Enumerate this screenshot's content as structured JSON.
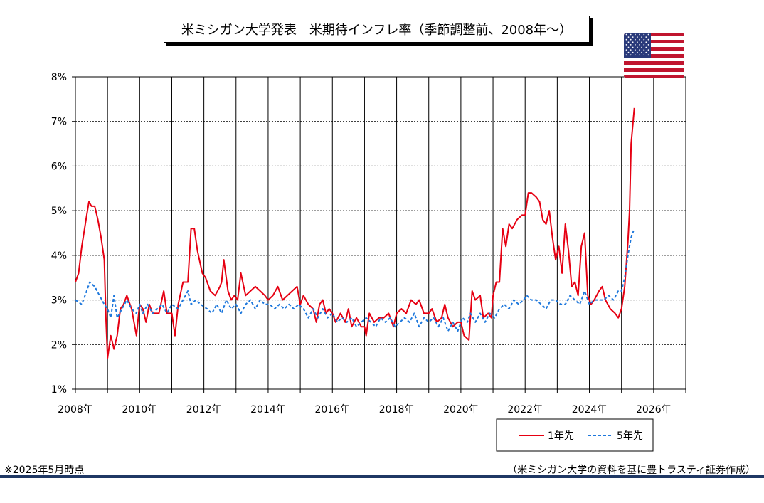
{
  "title": "米ミシガン大学発表　米期待インフレ率（季節調整前、2008年～）",
  "footnote": "※2025年5月時点",
  "source": "（米ミシガン大学の資料を基に豊トラスティ証券作成）",
  "flag_icon": "us-flag-icon",
  "chart_data": {
    "type": "line",
    "title": "米ミシガン大学発表　米期待インフレ率（季節調整前、2008年～）",
    "xlabel": "",
    "ylabel": "",
    "xlim": [
      2008,
      2027
    ],
    "ylim": [
      1,
      8
    ],
    "y_ticks": [
      "1%",
      "2%",
      "3%",
      "4%",
      "5%",
      "6%",
      "7%",
      "8%"
    ],
    "x_ticks": [
      "2008年",
      "2010年",
      "2012年",
      "2014年",
      "2016年",
      "2018年",
      "2020年",
      "2022年",
      "2024年",
      "2026年"
    ],
    "grid": true,
    "legend_position": "bottom-right",
    "series": [
      {
        "name": "1年先",
        "color": "#e60012",
        "style": "solid",
        "points": [
          [
            2008.0,
            3.4
          ],
          [
            2008.1,
            3.6
          ],
          [
            2008.2,
            4.2
          ],
          [
            2008.33,
            4.8
          ],
          [
            2008.42,
            5.2
          ],
          [
            2008.5,
            5.1
          ],
          [
            2008.6,
            5.1
          ],
          [
            2008.7,
            4.8
          ],
          [
            2008.8,
            4.4
          ],
          [
            2008.9,
            3.9
          ],
          [
            2008.95,
            2.6
          ],
          [
            2009.0,
            1.7
          ],
          [
            2009.1,
            2.2
          ],
          [
            2009.2,
            1.9
          ],
          [
            2009.3,
            2.2
          ],
          [
            2009.4,
            2.8
          ],
          [
            2009.5,
            2.9
          ],
          [
            2009.6,
            3.1
          ],
          [
            2009.75,
            2.8
          ],
          [
            2009.9,
            2.2
          ],
          [
            2010.0,
            2.9
          ],
          [
            2010.1,
            2.8
          ],
          [
            2010.2,
            2.5
          ],
          [
            2010.3,
            2.9
          ],
          [
            2010.4,
            2.7
          ],
          [
            2010.6,
            2.7
          ],
          [
            2010.75,
            3.2
          ],
          [
            2010.85,
            2.7
          ],
          [
            2011.0,
            2.7
          ],
          [
            2011.1,
            2.2
          ],
          [
            2011.2,
            2.9
          ],
          [
            2011.35,
            3.4
          ],
          [
            2011.5,
            3.4
          ],
          [
            2011.6,
            4.6
          ],
          [
            2011.7,
            4.6
          ],
          [
            2011.8,
            4.1
          ],
          [
            2011.95,
            3.6
          ],
          [
            2012.05,
            3.5
          ],
          [
            2012.2,
            3.2
          ],
          [
            2012.35,
            3.1
          ],
          [
            2012.5,
            3.3
          ],
          [
            2012.55,
            3.4
          ],
          [
            2012.62,
            3.9
          ],
          [
            2012.75,
            3.2
          ],
          [
            2012.85,
            3.0
          ],
          [
            2012.95,
            3.1
          ],
          [
            2013.05,
            3.0
          ],
          [
            2013.15,
            3.6
          ],
          [
            2013.3,
            3.1
          ],
          [
            2013.45,
            3.2
          ],
          [
            2013.6,
            3.3
          ],
          [
            2013.75,
            3.2
          ],
          [
            2013.9,
            3.1
          ],
          [
            2014.0,
            3.0
          ],
          [
            2014.15,
            3.1
          ],
          [
            2014.3,
            3.3
          ],
          [
            2014.45,
            3.0
          ],
          [
            2014.6,
            3.1
          ],
          [
            2014.75,
            3.2
          ],
          [
            2014.9,
            3.3
          ],
          [
            2015.0,
            2.9
          ],
          [
            2015.1,
            3.1
          ],
          [
            2015.25,
            2.9
          ],
          [
            2015.4,
            2.8
          ],
          [
            2015.5,
            2.5
          ],
          [
            2015.6,
            2.9
          ],
          [
            2015.7,
            3.0
          ],
          [
            2015.8,
            2.7
          ],
          [
            2015.9,
            2.8
          ],
          [
            2016.0,
            2.7
          ],
          [
            2016.1,
            2.5
          ],
          [
            2016.25,
            2.7
          ],
          [
            2016.4,
            2.5
          ],
          [
            2016.5,
            2.8
          ],
          [
            2016.6,
            2.4
          ],
          [
            2016.75,
            2.6
          ],
          [
            2016.9,
            2.4
          ],
          [
            2017.0,
            2.4
          ],
          [
            2017.05,
            2.2
          ],
          [
            2017.15,
            2.7
          ],
          [
            2017.3,
            2.5
          ],
          [
            2017.45,
            2.6
          ],
          [
            2017.6,
            2.6
          ],
          [
            2017.75,
            2.7
          ],
          [
            2017.9,
            2.4
          ],
          [
            2018.0,
            2.7
          ],
          [
            2018.15,
            2.8
          ],
          [
            2018.3,
            2.7
          ],
          [
            2018.45,
            3.0
          ],
          [
            2018.6,
            2.9
          ],
          [
            2018.7,
            3.0
          ],
          [
            2018.85,
            2.7
          ],
          [
            2019.0,
            2.7
          ],
          [
            2019.1,
            2.8
          ],
          [
            2019.25,
            2.5
          ],
          [
            2019.4,
            2.6
          ],
          [
            2019.5,
            2.9
          ],
          [
            2019.6,
            2.6
          ],
          [
            2019.75,
            2.4
          ],
          [
            2019.9,
            2.5
          ],
          [
            2020.0,
            2.5
          ],
          [
            2020.1,
            2.2
          ],
          [
            2020.25,
            2.1
          ],
          [
            2020.35,
            3.2
          ],
          [
            2020.45,
            3.0
          ],
          [
            2020.6,
            3.1
          ],
          [
            2020.7,
            2.6
          ],
          [
            2020.85,
            2.7
          ],
          [
            2020.95,
            2.6
          ],
          [
            2021.0,
            3.1
          ],
          [
            2021.1,
            3.4
          ],
          [
            2021.2,
            3.4
          ],
          [
            2021.3,
            4.6
          ],
          [
            2021.4,
            4.2
          ],
          [
            2021.5,
            4.7
          ],
          [
            2021.6,
            4.6
          ],
          [
            2021.75,
            4.8
          ],
          [
            2021.9,
            4.9
          ],
          [
            2022.0,
            4.9
          ],
          [
            2022.1,
            5.4
          ],
          [
            2022.2,
            5.4
          ],
          [
            2022.35,
            5.3
          ],
          [
            2022.45,
            5.2
          ],
          [
            2022.55,
            4.8
          ],
          [
            2022.65,
            4.7
          ],
          [
            2022.75,
            5.0
          ],
          [
            2022.85,
            4.4
          ],
          [
            2022.95,
            3.9
          ],
          [
            2023.05,
            4.2
          ],
          [
            2023.15,
            3.6
          ],
          [
            2023.25,
            4.7
          ],
          [
            2023.35,
            4.1
          ],
          [
            2023.45,
            3.3
          ],
          [
            2023.55,
            3.4
          ],
          [
            2023.65,
            3.1
          ],
          [
            2023.75,
            4.2
          ],
          [
            2023.85,
            4.5
          ],
          [
            2023.95,
            3.1
          ],
          [
            2024.05,
            2.9
          ],
          [
            2024.15,
            3.0
          ],
          [
            2024.3,
            3.2
          ],
          [
            2024.4,
            3.3
          ],
          [
            2024.5,
            3.0
          ],
          [
            2024.65,
            2.8
          ],
          [
            2024.8,
            2.7
          ],
          [
            2024.9,
            2.6
          ],
          [
            2025.0,
            2.8
          ],
          [
            2025.1,
            3.3
          ],
          [
            2025.2,
            4.3
          ],
          [
            2025.25,
            5.0
          ],
          [
            2025.3,
            6.5
          ],
          [
            2025.4,
            7.3
          ]
        ]
      },
      {
        "name": "5年先",
        "color": "#1e78dc",
        "style": "dashed",
        "points": [
          [
            2008.0,
            3.0
          ],
          [
            2008.2,
            2.9
          ],
          [
            2008.35,
            3.2
          ],
          [
            2008.45,
            3.4
          ],
          [
            2008.6,
            3.3
          ],
          [
            2008.75,
            3.1
          ],
          [
            2008.9,
            2.9
          ],
          [
            2009.0,
            2.8
          ],
          [
            2009.1,
            2.6
          ],
          [
            2009.2,
            3.1
          ],
          [
            2009.3,
            2.6
          ],
          [
            2009.45,
            2.8
          ],
          [
            2009.6,
            3.0
          ],
          [
            2009.75,
            2.8
          ],
          [
            2009.9,
            2.7
          ],
          [
            2010.0,
            2.9
          ],
          [
            2010.1,
            2.7
          ],
          [
            2010.25,
            2.9
          ],
          [
            2010.4,
            2.7
          ],
          [
            2010.55,
            2.8
          ],
          [
            2010.7,
            2.9
          ],
          [
            2010.85,
            2.7
          ],
          [
            2011.0,
            2.9
          ],
          [
            2011.2,
            2.8
          ],
          [
            2011.35,
            3.0
          ],
          [
            2011.5,
            3.2
          ],
          [
            2011.6,
            2.9
          ],
          [
            2011.75,
            3.0
          ],
          [
            2011.9,
            2.9
          ],
          [
            2012.1,
            2.8
          ],
          [
            2012.25,
            2.7
          ],
          [
            2012.4,
            2.9
          ],
          [
            2012.55,
            2.7
          ],
          [
            2012.7,
            3.0
          ],
          [
            2012.85,
            2.8
          ],
          [
            2013.0,
            2.9
          ],
          [
            2013.15,
            2.7
          ],
          [
            2013.3,
            2.9
          ],
          [
            2013.45,
            3.0
          ],
          [
            2013.6,
            2.8
          ],
          [
            2013.75,
            3.0
          ],
          [
            2013.9,
            2.9
          ],
          [
            2014.05,
            2.9
          ],
          [
            2014.2,
            2.8
          ],
          [
            2014.35,
            2.9
          ],
          [
            2014.5,
            2.8
          ],
          [
            2014.65,
            2.9
          ],
          [
            2014.8,
            2.8
          ],
          [
            2014.95,
            2.9
          ],
          [
            2015.1,
            2.8
          ],
          [
            2015.25,
            2.6
          ],
          [
            2015.4,
            2.8
          ],
          [
            2015.55,
            2.6
          ],
          [
            2015.7,
            2.8
          ],
          [
            2015.85,
            2.6
          ],
          [
            2016.0,
            2.7
          ],
          [
            2016.15,
            2.5
          ],
          [
            2016.3,
            2.6
          ],
          [
            2016.45,
            2.5
          ],
          [
            2016.6,
            2.6
          ],
          [
            2016.75,
            2.4
          ],
          [
            2016.9,
            2.5
          ],
          [
            2017.05,
            2.6
          ],
          [
            2017.2,
            2.5
          ],
          [
            2017.35,
            2.4
          ],
          [
            2017.5,
            2.6
          ],
          [
            2017.65,
            2.5
          ],
          [
            2017.8,
            2.6
          ],
          [
            2017.95,
            2.4
          ],
          [
            2018.1,
            2.5
          ],
          [
            2018.25,
            2.6
          ],
          [
            2018.4,
            2.5
          ],
          [
            2018.55,
            2.7
          ],
          [
            2018.7,
            2.4
          ],
          [
            2018.85,
            2.6
          ],
          [
            2019.0,
            2.5
          ],
          [
            2019.15,
            2.6
          ],
          [
            2019.3,
            2.4
          ],
          [
            2019.45,
            2.6
          ],
          [
            2019.6,
            2.3
          ],
          [
            2019.75,
            2.5
          ],
          [
            2019.9,
            2.3
          ],
          [
            2020.05,
            2.6
          ],
          [
            2020.2,
            2.5
          ],
          [
            2020.3,
            2.7
          ],
          [
            2020.45,
            2.5
          ],
          [
            2020.6,
            2.7
          ],
          [
            2020.75,
            2.5
          ],
          [
            2020.9,
            2.7
          ],
          [
            2021.05,
            2.6
          ],
          [
            2021.2,
            2.8
          ],
          [
            2021.35,
            2.9
          ],
          [
            2021.5,
            2.8
          ],
          [
            2021.65,
            3.0
          ],
          [
            2021.8,
            2.9
          ],
          [
            2021.95,
            3.0
          ],
          [
            2022.05,
            3.1
          ],
          [
            2022.2,
            3.0
          ],
          [
            2022.35,
            3.0
          ],
          [
            2022.5,
            2.9
          ],
          [
            2022.65,
            2.8
          ],
          [
            2022.8,
            3.0
          ],
          [
            2022.95,
            3.0
          ],
          [
            2023.1,
            2.9
          ],
          [
            2023.25,
            2.9
          ],
          [
            2023.4,
            3.1
          ],
          [
            2023.55,
            3.0
          ],
          [
            2023.7,
            2.9
          ],
          [
            2023.85,
            3.2
          ],
          [
            2024.0,
            2.9
          ],
          [
            2024.15,
            3.0
          ],
          [
            2024.3,
            3.0
          ],
          [
            2024.45,
            3.0
          ],
          [
            2024.6,
            3.1
          ],
          [
            2024.75,
            3.0
          ],
          [
            2024.9,
            3.2
          ],
          [
            2025.0,
            3.2
          ],
          [
            2025.1,
            3.5
          ],
          [
            2025.2,
            4.0
          ],
          [
            2025.3,
            4.4
          ],
          [
            2025.4,
            4.6
          ]
        ]
      }
    ]
  }
}
